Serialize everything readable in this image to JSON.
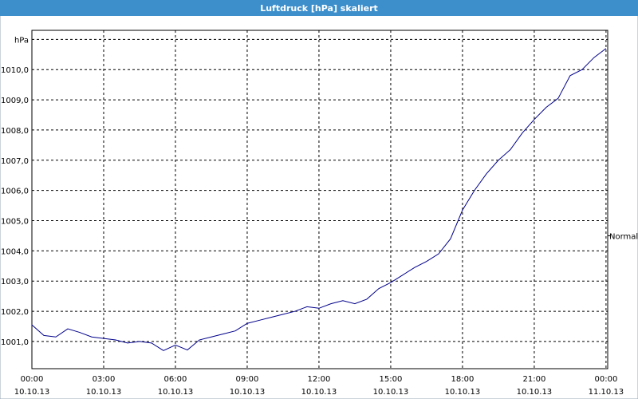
{
  "chart_data": {
    "type": "line",
    "title": "Luftdruck [hPa] skaliert",
    "x": [
      0,
      0.5,
      1,
      1.5,
      2,
      2.5,
      3,
      3.5,
      4,
      4.5,
      5,
      5.5,
      6,
      6.5,
      7,
      7.5,
      8,
      8.5,
      9,
      9.5,
      10,
      10.5,
      11,
      11.5,
      12,
      12.5,
      13,
      13.5,
      14,
      14.5,
      15,
      15.5,
      16,
      16.5,
      17,
      17.5,
      18,
      18.5,
      19,
      19.5,
      20,
      20.5,
      21,
      21.5,
      22,
      22.5,
      23,
      23.5,
      24
    ],
    "series": [
      {
        "name": "Luftdruck",
        "color": "#00008b",
        "values": [
          1001.55,
          1001.2,
          1001.15,
          1001.42,
          1001.3,
          1001.15,
          1001.1,
          1001.05,
          1000.95,
          1001.0,
          1000.95,
          1000.7,
          1000.88,
          1000.72,
          1001.05,
          1001.15,
          1001.25,
          1001.35,
          1001.6,
          1001.7,
          1001.8,
          1001.9,
          1002.0,
          1002.15,
          1002.1,
          1002.25,
          1002.35,
          1002.25,
          1002.4,
          1002.75,
          1002.95,
          1003.2,
          1003.45,
          1003.65,
          1003.9,
          1004.4,
          1005.35,
          1006.0,
          1006.55,
          1007.0,
          1007.35,
          1007.9,
          1008.35,
          1008.75,
          1009.05,
          1009.8,
          1010.0,
          1010.4,
          1010.7
        ]
      }
    ],
    "xlim": [
      0,
      24.07
    ],
    "xticks": [
      {
        "value": 0,
        "label": "00:00"
      },
      {
        "value": 3,
        "label": "03:00"
      },
      {
        "value": 6,
        "label": "06:00"
      },
      {
        "value": 9,
        "label": "09:00"
      },
      {
        "value": 12,
        "label": "12:00"
      },
      {
        "value": 15,
        "label": "15:00"
      },
      {
        "value": 18,
        "label": "18:00"
      },
      {
        "value": 21,
        "label": "21:00"
      },
      {
        "value": 24,
        "label": "00:00"
      }
    ],
    "xtick_dates": [
      "10.10.13",
      "10.10.13",
      "10.10.13",
      "10.10.13",
      "10.10.13",
      "10.10.13",
      "10.10.13",
      "10.10.13",
      "11.10.13"
    ],
    "ylim": [
      1000.1,
      1011.3
    ],
    "yticks": [
      {
        "value": 1001,
        "label": "1001,0"
      },
      {
        "value": 1002,
        "label": "1002,0"
      },
      {
        "value": 1003,
        "label": "1003,0"
      },
      {
        "value": 1004,
        "label": "1004,0"
      },
      {
        "value": 1005,
        "label": "1005,0"
      },
      {
        "value": 1006,
        "label": "1006,0"
      },
      {
        "value": 1007,
        "label": "1007,0"
      },
      {
        "value": 1008,
        "label": "1008,0"
      },
      {
        "value": 1009,
        "label": "1009,0"
      },
      {
        "value": 1010,
        "label": "1010,0"
      },
      {
        "value": 1011,
        "label": "hPa"
      }
    ],
    "annotations": [
      {
        "text": "Normal",
        "value": 1004.5
      }
    ],
    "grid": true
  }
}
